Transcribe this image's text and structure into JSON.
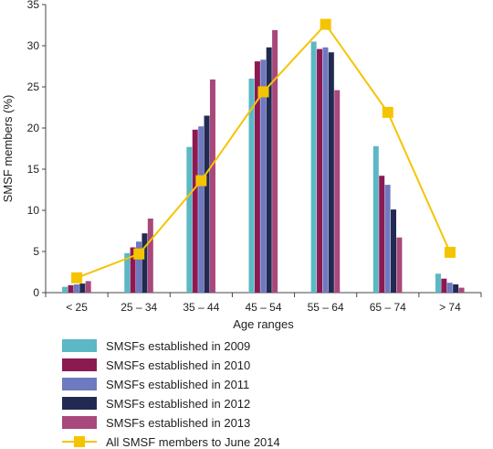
{
  "chart_data": {
    "type": "bar",
    "categories": [
      "< 25",
      "25 – 34",
      "35 – 44",
      "45 – 54",
      "55 – 64",
      "65 – 74",
      "> 74"
    ],
    "series": [
      {
        "name": "SMSFs established in 2009",
        "type": "bar",
        "color": "#5bb8c4",
        "values": [
          0.7,
          4.8,
          17.7,
          26.0,
          30.5,
          17.8,
          2.3
        ]
      },
      {
        "name": "SMSFs established in 2010",
        "type": "bar",
        "color": "#8c1a52",
        "values": [
          0.9,
          5.5,
          19.8,
          28.1,
          29.6,
          14.2,
          1.7
        ]
      },
      {
        "name": "SMSFs established in 2011",
        "type": "bar",
        "color": "#6f79bf",
        "values": [
          1.0,
          6.2,
          20.2,
          28.3,
          29.8,
          13.1,
          1.2
        ]
      },
      {
        "name": "SMSFs established in 2012",
        "type": "bar",
        "color": "#222a52",
        "values": [
          1.1,
          7.2,
          21.5,
          29.8,
          29.2,
          10.1,
          1.0
        ]
      },
      {
        "name": "SMSFs established in 2013",
        "type": "bar",
        "color": "#a8487c",
        "values": [
          1.4,
          9.0,
          25.9,
          31.9,
          24.6,
          6.7,
          0.6
        ]
      },
      {
        "name": "All SMSF members to June 2014",
        "type": "line",
        "color": "#f5c400",
        "values": [
          1.8,
          4.7,
          13.6,
          24.4,
          32.6,
          21.9,
          4.9
        ]
      }
    ],
    "xlabel": "Age ranges",
    "ylabel": "SMSF members (%)",
    "ylim": [
      0,
      35
    ],
    "yticks": [
      0,
      5,
      10,
      15,
      20,
      25,
      30,
      35
    ],
    "grid": false,
    "legend_position": "bottom"
  }
}
